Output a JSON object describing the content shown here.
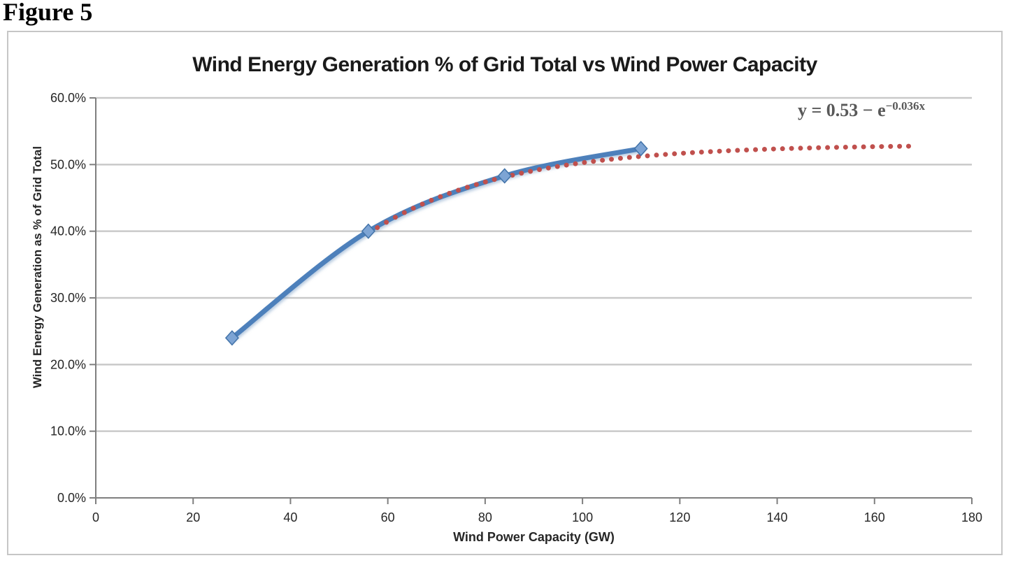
{
  "figure_label": "Figure 5",
  "chart_data": {
    "type": "line",
    "title": "Wind Energy Generation % of Grid Total vs Wind Power Capacity",
    "xlabel": "Wind Power Capacity (GW)",
    "ylabel": "Wind Energy Generation as % of Grid Total",
    "xlim": [
      0,
      180
    ],
    "ylim": [
      0,
      0.6
    ],
    "grid": "horizontal",
    "legend": "none",
    "x_ticks": [
      0,
      20,
      40,
      60,
      80,
      100,
      120,
      140,
      160,
      180
    ],
    "y_ticks": [
      {
        "v": 0.0,
        "label": "0.0%"
      },
      {
        "v": 0.1,
        "label": "10.0%"
      },
      {
        "v": 0.2,
        "label": "20.0%"
      },
      {
        "v": 0.3,
        "label": "30.0%"
      },
      {
        "v": 0.4,
        "label": "40.0%"
      },
      {
        "v": 0.5,
        "label": "50.0%"
      },
      {
        "v": 0.6,
        "label": "60.0%"
      }
    ],
    "series": [
      {
        "name": "Wind energy generation data",
        "style": "smooth-line-with-diamond-markers",
        "points": [
          [
            28,
            0.24
          ],
          [
            56,
            0.4
          ],
          [
            84,
            0.483
          ],
          [
            112,
            0.524
          ]
        ]
      },
      {
        "name": "Fitted exponential trendline",
        "style": "dotted",
        "formula": "y = 0.53 − e^(−0.036x)",
        "coef_a": 0.53,
        "coef_b": 0.036,
        "x_range": [
          56,
          168.5
        ]
      }
    ],
    "annotation": {
      "base": "y = 0.53 − e",
      "exponent": "−0.036x",
      "full": "y = 0.53 − e^(−0.036x)"
    },
    "colors": {
      "line": "#4d80bb",
      "marker_fill": "#7da4d4",
      "marker_stroke": "#4273a9",
      "trend": "#c0504d",
      "grid": "#c9c9c9",
      "axis": "#7f7f7f",
      "tick_text": "#262626",
      "title_text": "#1a1a1a",
      "equation_text": "#595959",
      "border": "#c6c6c6"
    }
  }
}
